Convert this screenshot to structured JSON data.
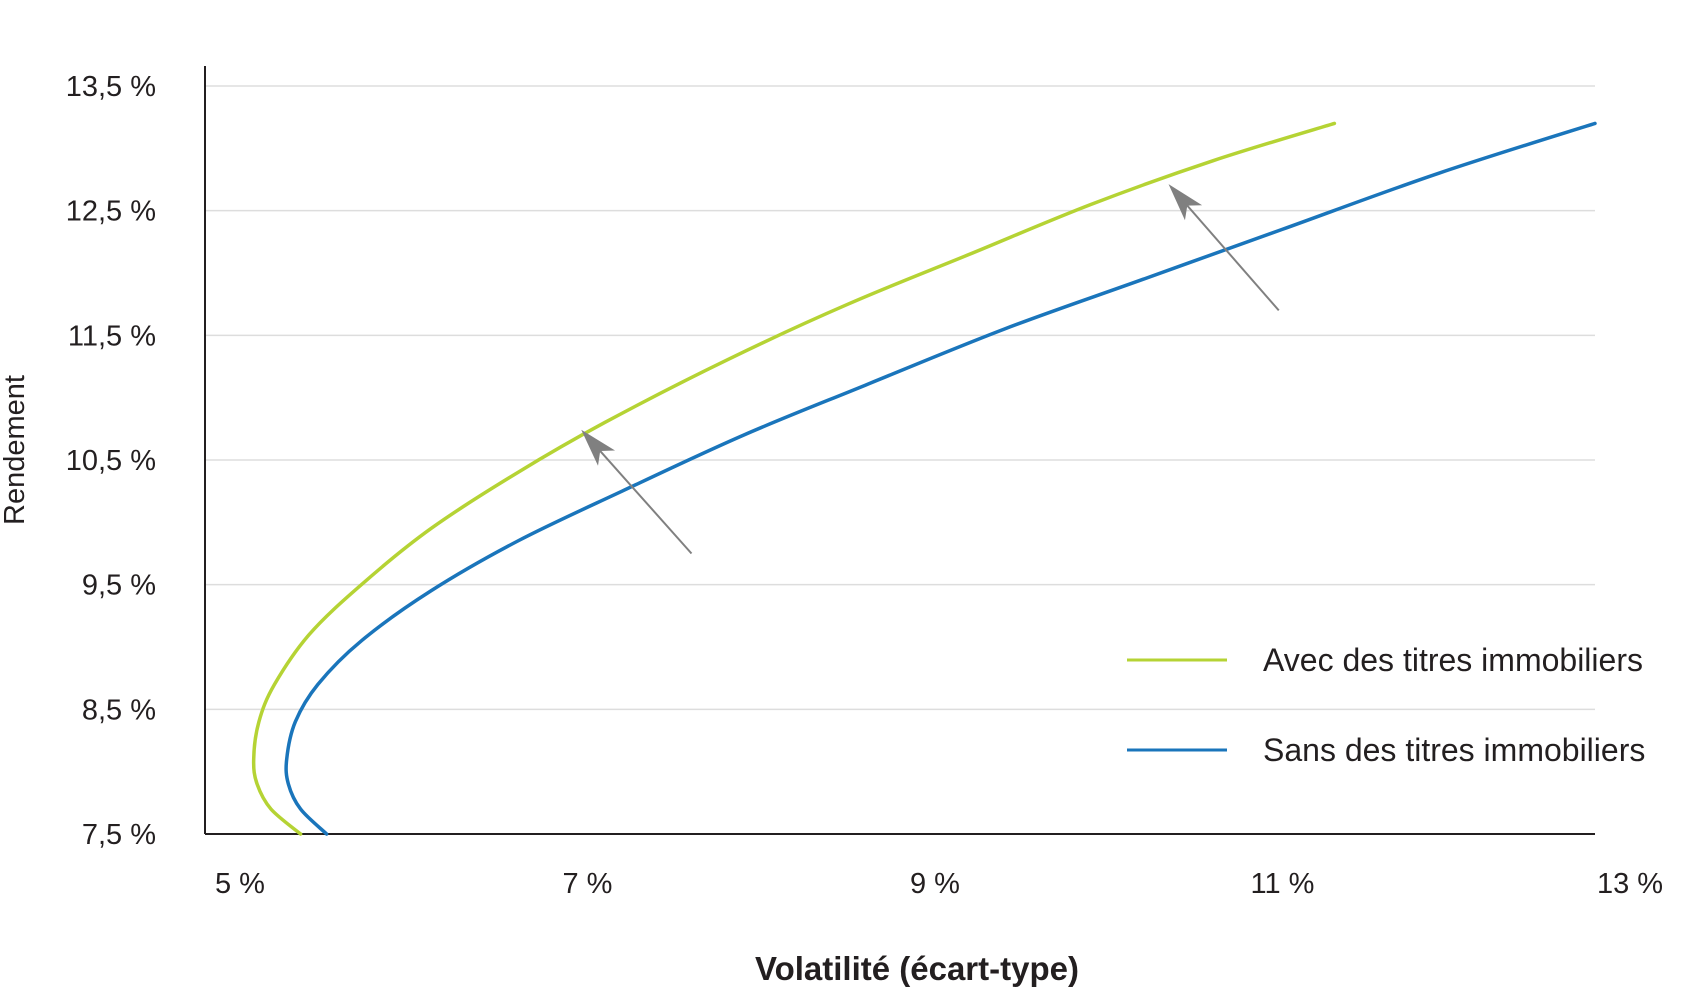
{
  "chart_data": {
    "type": "line",
    "title": "",
    "xlabel": "Volatilité (écart-type)",
    "ylabel": "Rendement",
    "xlim": [
      5,
      13
    ],
    "ylim": [
      7.5,
      13.5
    ],
    "x_ticks": [
      5,
      7,
      9,
      11,
      13
    ],
    "x_tick_labels": [
      "5 %",
      "7 %",
      "9 %",
      "11 %",
      "13 %"
    ],
    "y_ticks": [
      7.5,
      8.5,
      9.5,
      10.5,
      11.5,
      12.5,
      13.5
    ],
    "y_tick_labels": [
      "7,5 %",
      "8,5 %",
      "9,5 %",
      "10,5 %",
      "11,5 %",
      "12,5 %",
      "13,5 %"
    ],
    "grid": "horizontal",
    "legend_position": "bottom-right",
    "series": [
      {
        "name": "Avec des titres immobiliers",
        "color": "#b5d334",
        "x": [
          5.55,
          5.38,
          5.3,
          5.28,
          5.31,
          5.4,
          5.6,
          5.9,
          6.3,
          6.8,
          7.3,
          8.0,
          8.7,
          9.4,
          10.1,
          10.8,
          11.5
        ],
        "y": [
          7.5,
          7.7,
          7.9,
          8.1,
          8.4,
          8.7,
          9.1,
          9.5,
          9.95,
          10.4,
          10.8,
          11.3,
          11.75,
          12.15,
          12.55,
          12.9,
          13.2
        ]
      },
      {
        "name": "Sans des titres immobiliers",
        "color": "#1a75bb",
        "x": [
          5.7,
          5.55,
          5.48,
          5.47,
          5.52,
          5.65,
          5.9,
          6.3,
          6.8,
          7.4,
          8.1,
          8.8,
          9.6,
          10.4,
          11.2,
          12.1,
          13.0
        ],
        "y": [
          7.5,
          7.7,
          7.9,
          8.1,
          8.4,
          8.7,
          9.05,
          9.45,
          9.85,
          10.25,
          10.7,
          11.1,
          11.55,
          11.95,
          12.35,
          12.8,
          13.2
        ]
      }
    ],
    "annotations": [
      {
        "type": "arrow",
        "from": [
          7.8,
          9.75
        ],
        "to": [
          7.18,
          10.72
        ]
      },
      {
        "type": "arrow",
        "from": [
          11.18,
          11.7
        ],
        "to": [
          10.56,
          12.69
        ]
      }
    ]
  }
}
